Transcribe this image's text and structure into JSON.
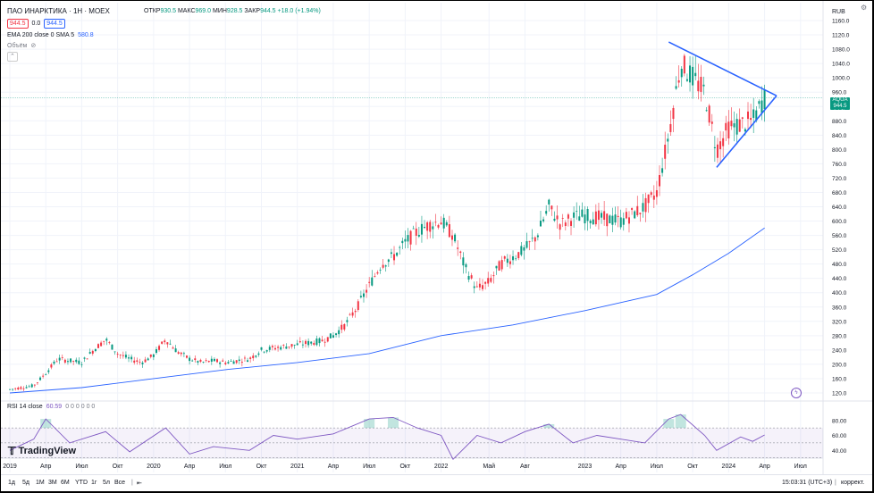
{
  "header": {
    "title": "ПАО ИНАРКТИКА · 1Н · MOEX",
    "open_label": "ОТКР",
    "open": "930.5",
    "high_label": "МАКС",
    "high": "969.0",
    "low_label": "МИН",
    "low": "928.5",
    "close_label": "ЗАКР",
    "close": "944.5",
    "change": "+18.0 (+1.94%)",
    "bid": "944.5",
    "spread": "0.0",
    "ask": "944.5"
  },
  "indicators": {
    "ema_label": "EMA 200 close 0 SMA 5",
    "ema_value": "580.8",
    "volume_label": "Объём",
    "rsi_label": "RSI 14 close",
    "rsi_value": "60.59",
    "rsi_extra": "0 0 0 0 0 0"
  },
  "currency": "RUB",
  "price_tag": {
    "ticker": "AQUA",
    "price": "944.5",
    "time_left": "1d 9h"
  },
  "logo": "TradingView",
  "toolbar": {
    "ranges": [
      "1д",
      "5д",
      "1М",
      "3М",
      "6М",
      "YTD",
      "1г",
      "5л",
      "Все"
    ],
    "time": "15:03:31 (UTC+3)",
    "adjust": "коррект."
  },
  "colors": {
    "up": "#089981",
    "down": "#f23645",
    "ema": "#2962ff",
    "rsi": "#7e57c2",
    "triangle": "#2962ff"
  },
  "chart_data": [
    {
      "type": "candlestick",
      "title": "ПАО ИНАРКТИКА · 1Н · MOEX",
      "ylabel": "RUB",
      "ylim": [
        100,
        1180
      ],
      "yticks": [
        120,
        160,
        200,
        240,
        280,
        320,
        360,
        400,
        440,
        480,
        520,
        560,
        600,
        640,
        680,
        720,
        760,
        800,
        840,
        880,
        920,
        960,
        1000,
        1040,
        1080,
        1120,
        1160
      ],
      "x_labels": [
        "2019",
        "Апр",
        "Июл",
        "Окт",
        "2020",
        "Апр",
        "Июл",
        "Окт",
        "2021",
        "Апр",
        "Июл",
        "Окт",
        "2022",
        "Май",
        "Авг",
        "2023",
        "Апр",
        "Июл",
        "Окт",
        "2024",
        "Апр",
        "Июл"
      ],
      "x_label_dates": [
        "2019-01",
        "2019-04",
        "2019-07",
        "2019-10",
        "2020-01",
        "2020-04",
        "2020-07",
        "2020-10",
        "2021-01",
        "2021-04",
        "2021-07",
        "2021-10",
        "2022-01",
        "2022-05",
        "2022-08",
        "2023-01",
        "2023-04",
        "2023-07",
        "2023-10",
        "2024-01",
        "2024-04",
        "2024-07"
      ],
      "price_path": [
        [
          "2019-01",
          130
        ],
        [
          "2019-02",
          135
        ],
        [
          "2019-03",
          140
        ],
        [
          "2019-04",
          175
        ],
        [
          "2019-05",
          215
        ],
        [
          "2019-06",
          210
        ],
        [
          "2019-07",
          205
        ],
        [
          "2019-08",
          240
        ],
        [
          "2019-09",
          270
        ],
        [
          "2019-10",
          230
        ],
        [
          "2019-11",
          215
        ],
        [
          "2019-12",
          205
        ],
        [
          "2020-01",
          225
        ],
        [
          "2020-02",
          270
        ],
        [
          "2020-03",
          235
        ],
        [
          "2020-04",
          215
        ],
        [
          "2020-05",
          205
        ],
        [
          "2020-06",
          210
        ],
        [
          "2020-07",
          205
        ],
        [
          "2020-08",
          210
        ],
        [
          "2020-09",
          215
        ],
        [
          "2020-10",
          240
        ],
        [
          "2020-11",
          245
        ],
        [
          "2020-12",
          250
        ],
        [
          "2021-01",
          255
        ],
        [
          "2021-02",
          260
        ],
        [
          "2021-03",
          265
        ],
        [
          "2021-04",
          280
        ],
        [
          "2021-05",
          310
        ],
        [
          "2021-06",
          360
        ],
        [
          "2021-07",
          420
        ],
        [
          "2021-08",
          480
        ],
        [
          "2021-09",
          500
        ],
        [
          "2021-10",
          540
        ],
        [
          "2021-11",
          570
        ],
        [
          "2021-12",
          590
        ],
        [
          "2022-01",
          600
        ],
        [
          "2022-02",
          560
        ],
        [
          "2022-03",
          470
        ],
        [
          "2022-04",
          410
        ],
        [
          "2022-05",
          430
        ],
        [
          "2022-06",
          480
        ],
        [
          "2022-07",
          500
        ],
        [
          "2022-08",
          520
        ],
        [
          "2022-09",
          560
        ],
        [
          "2022-10",
          640
        ],
        [
          "2022-11",
          590
        ],
        [
          "2022-12",
          610
        ],
        [
          "2023-01",
          615
        ],
        [
          "2023-02",
          610
        ],
        [
          "2023-03",
          605
        ],
        [
          "2023-04",
          600
        ],
        [
          "2023-05",
          620
        ],
        [
          "2023-06",
          640
        ],
        [
          "2023-07",
          680
        ],
        [
          "2023-08",
          840
        ],
        [
          "2023-09",
          1040
        ],
        [
          "2023-10",
          1000
        ],
        [
          "2023-11",
          960
        ],
        [
          "2023-12",
          800
        ],
        [
          "2024-01",
          860
        ],
        [
          "2024-02",
          870
        ],
        [
          "2024-03",
          880
        ],
        [
          "2024-04",
          944.5
        ]
      ],
      "ema_series": {
        "name": "EMA 200 close 0 SMA 5",
        "points": [
          [
            "2019-01",
            120
          ],
          [
            "2019-07",
            135
          ],
          [
            "2020-01",
            160
          ],
          [
            "2020-07",
            185
          ],
          [
            "2021-01",
            205
          ],
          [
            "2021-07",
            230
          ],
          [
            "2022-01",
            280
          ],
          [
            "2022-07",
            310
          ],
          [
            "2023-01",
            350
          ],
          [
            "2023-07",
            395
          ],
          [
            "2023-10",
            450
          ],
          [
            "2024-01",
            510
          ],
          [
            "2024-04",
            580.8
          ]
        ]
      },
      "annotations": [
        {
          "type": "symmetrical-triangle",
          "upper_line": [
            [
              "2023-08",
              1100
            ],
            [
              "2024-05",
              950
            ]
          ],
          "lower_line": [
            [
              "2023-12",
              750
            ],
            [
              "2024-05",
              950
            ]
          ]
        }
      ]
    },
    {
      "type": "line",
      "title": "RSI 14 close",
      "ylim": [
        20,
        100
      ],
      "yticks": [
        40,
        60,
        80
      ],
      "bands": [
        30,
        50,
        70
      ],
      "series": [
        {
          "name": "RSI 14 close",
          "points": [
            [
              "2019-01",
              40
            ],
            [
              "2019-03",
              55
            ],
            [
              "2019-04",
              82
            ],
            [
              "2019-06",
              50
            ],
            [
              "2019-09",
              65
            ],
            [
              "2019-11",
              38
            ],
            [
              "2020-02",
              70
            ],
            [
              "2020-04",
              35
            ],
            [
              "2020-06",
              45
            ],
            [
              "2020-09",
              40
            ],
            [
              "2020-11",
              60
            ],
            [
              "2021-01",
              55
            ],
            [
              "2021-04",
              62
            ],
            [
              "2021-07",
              82
            ],
            [
              "2021-09",
              84
            ],
            [
              "2021-11",
              70
            ],
            [
              "2022-01",
              60
            ],
            [
              "2022-02",
              28
            ],
            [
              "2022-04",
              60
            ],
            [
              "2022-06",
              50
            ],
            [
              "2022-08",
              65
            ],
            [
              "2022-10",
              75
            ],
            [
              "2022-12",
              50
            ],
            [
              "2023-02",
              60
            ],
            [
              "2023-04",
              55
            ],
            [
              "2023-06",
              50
            ],
            [
              "2023-08",
              82
            ],
            [
              "2023-09",
              88
            ],
            [
              "2023-11",
              60
            ],
            [
              "2023-12",
              40
            ],
            [
              "2024-02",
              58
            ],
            [
              "2024-03",
              52
            ],
            [
              "2024-04",
              60.59
            ]
          ]
        }
      ]
    }
  ]
}
